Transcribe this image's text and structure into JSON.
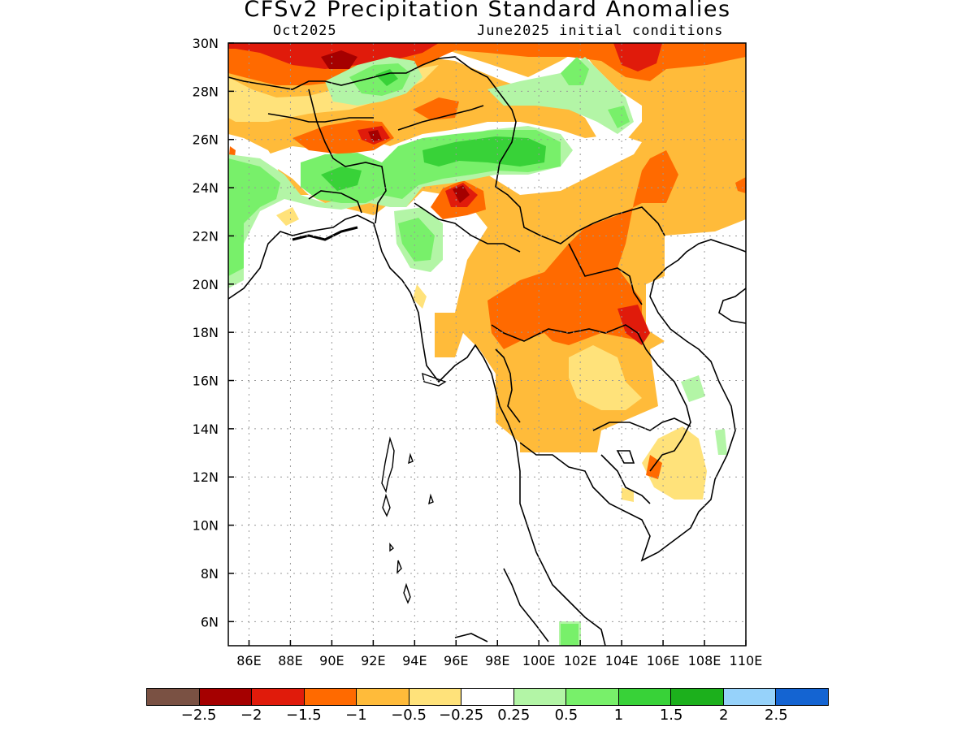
{
  "title": "CFSv2 Precipitation Standard Anomalies",
  "month_label": "Oct2025",
  "init_label": "June2025 initial conditions",
  "map": {
    "lon_range": [
      85,
      110
    ],
    "lat_range": [
      5,
      30
    ],
    "lon_ticks": [
      {
        "value": 86,
        "label": "86E"
      },
      {
        "value": 88,
        "label": "88E"
      },
      {
        "value": 90,
        "label": "90E"
      },
      {
        "value": 92,
        "label": "92E"
      },
      {
        "value": 94,
        "label": "94E"
      },
      {
        "value": 96,
        "label": "96E"
      },
      {
        "value": 98,
        "label": "98E"
      },
      {
        "value": 100,
        "label": "100E"
      },
      {
        "value": 102,
        "label": "102E"
      },
      {
        "value": 104,
        "label": "104E"
      },
      {
        "value": 106,
        "label": "106E"
      },
      {
        "value": 108,
        "label": "108E"
      },
      {
        "value": 110,
        "label": "110E"
      }
    ],
    "lat_ticks": [
      {
        "value": 30,
        "label": "30N"
      },
      {
        "value": 28,
        "label": "28N"
      },
      {
        "value": 26,
        "label": "26N"
      },
      {
        "value": 24,
        "label": "24N"
      },
      {
        "value": 22,
        "label": "22N"
      },
      {
        "value": 20,
        "label": "20N"
      },
      {
        "value": 18,
        "label": "18N"
      },
      {
        "value": 16,
        "label": "16N"
      },
      {
        "value": 14,
        "label": "14N"
      },
      {
        "value": 12,
        "label": "12N"
      },
      {
        "value": 10,
        "label": "10N"
      },
      {
        "value": 8,
        "label": "8N"
      },
      {
        "value": 6,
        "label": "6N"
      }
    ]
  },
  "legend": {
    "colors": [
      "#7a5143",
      "#a50000",
      "#e01b0b",
      "#ff6a00",
      "#ffbb3a",
      "#ffe27a",
      "#ffffff",
      "#b3f5a6",
      "#78f06a",
      "#38d238",
      "#1cb01c",
      "#96d2fa",
      "#1464d2"
    ],
    "labels": [
      "−2.5",
      "−2",
      "−1.5",
      "−1",
      "−0.5",
      "−0.25",
      "0.25",
      "0.5",
      "1",
      "1.5",
      "2",
      "2.5"
    ]
  }
}
